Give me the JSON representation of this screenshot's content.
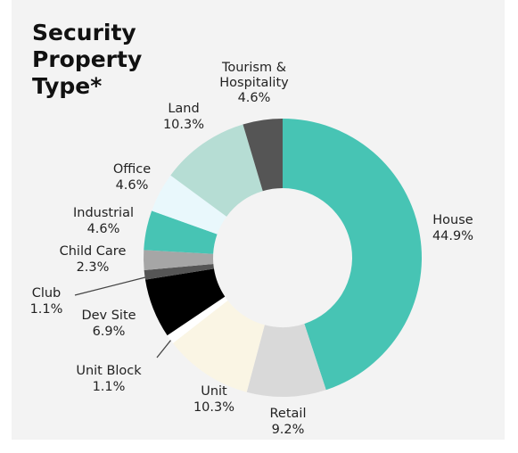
{
  "chart_data": {
    "type": "donut",
    "title": "Security Property Type*",
    "categories": [
      "House",
      "Retail",
      "Unit",
      "Unit Block",
      "Dev Site",
      "Club",
      "Child Care",
      "Industrial",
      "Office",
      "Land",
      "Tourism & Hospitality"
    ],
    "values": [
      44.9,
      9.2,
      10.3,
      1.1,
      6.9,
      1.1,
      2.3,
      4.6,
      4.6,
      10.3,
      4.6
    ],
    "value_labels": [
      "44.9%",
      "9.2%",
      "10.3%",
      "1.1%",
      "6.9%",
      "1.1%",
      "2.3%",
      "4.6%",
      "4.6%",
      "10.3%",
      "4.6%"
    ],
    "colors": [
      "#47c4b4",
      "#d9d9d9",
      "#faf5e4",
      "#ffffff",
      "#000000",
      "#555555",
      "#a6a6a6",
      "#47c4b4",
      "#e9f8fc",
      "#b6ddd4",
      "#555555"
    ]
  }
}
